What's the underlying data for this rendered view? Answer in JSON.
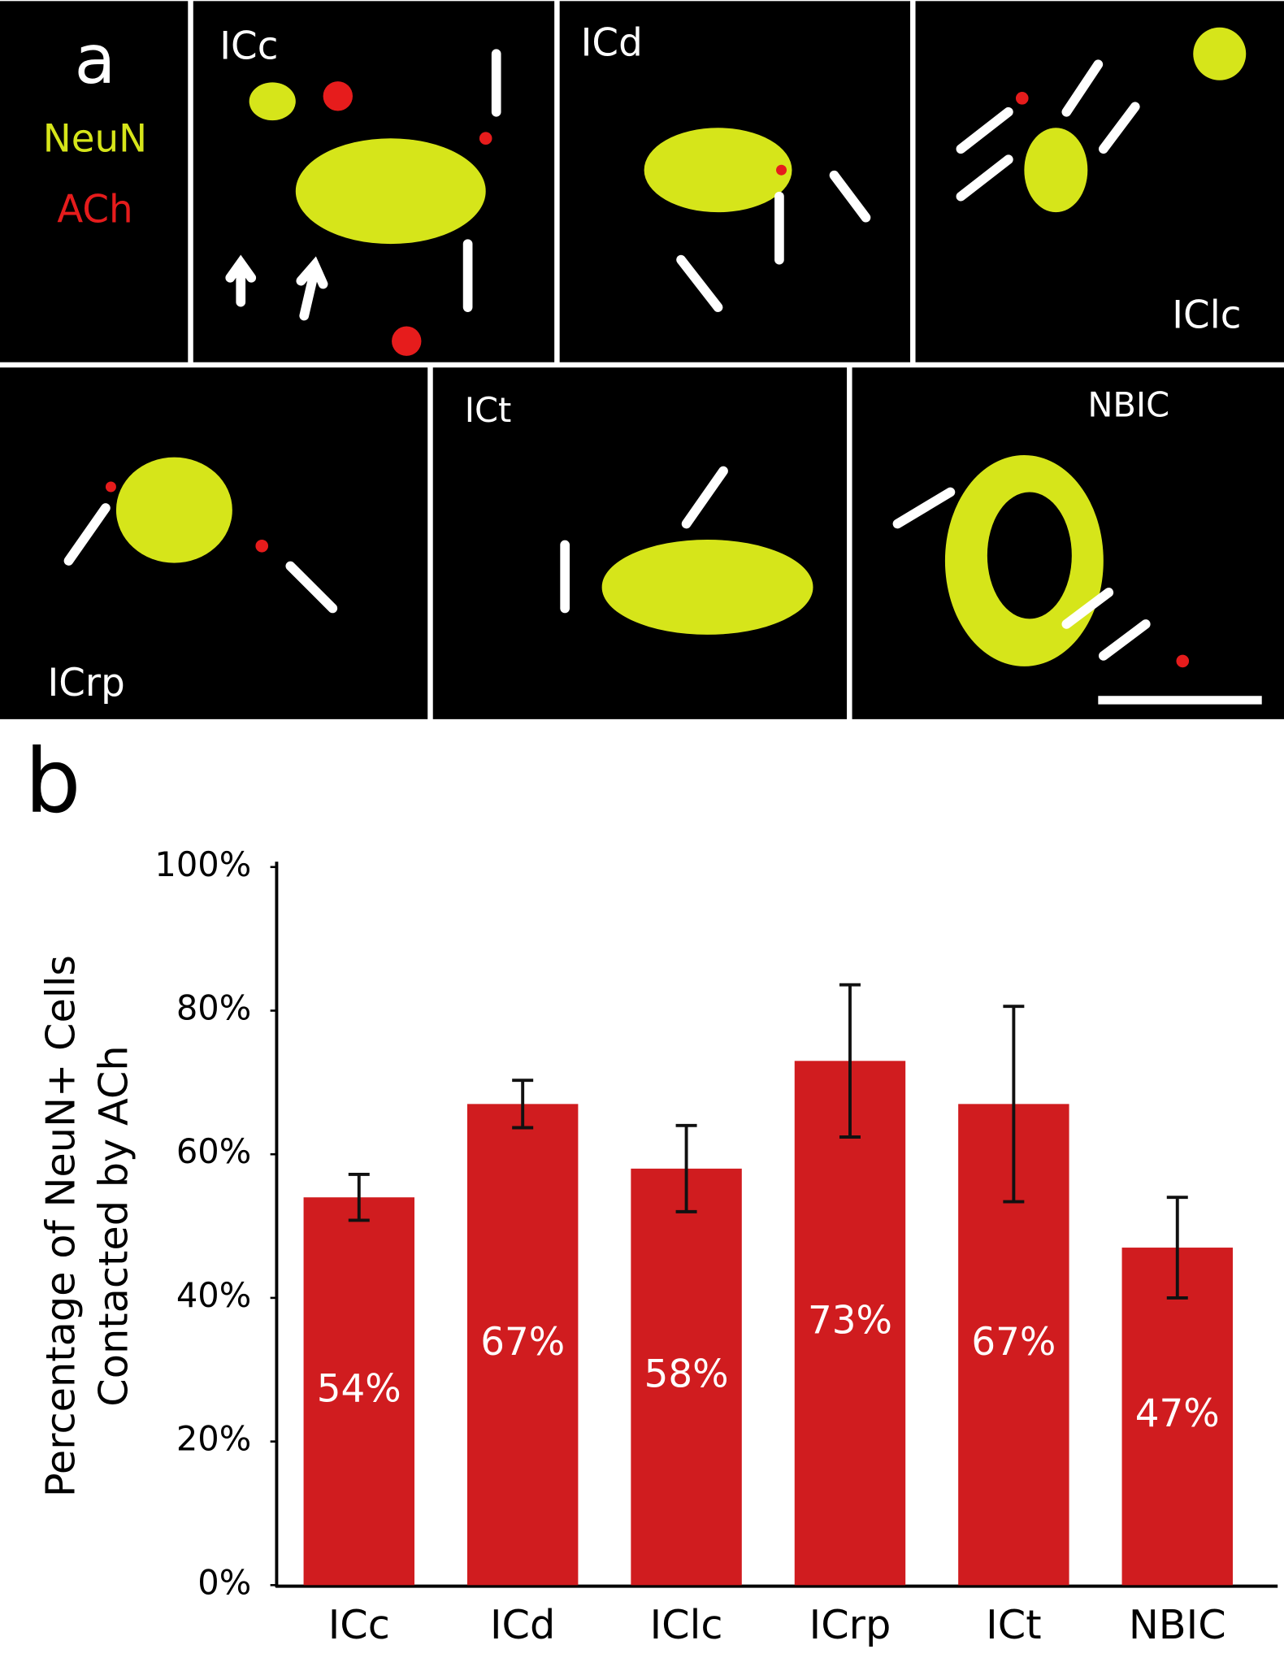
{
  "panel_a": {
    "label": "a",
    "legend": [
      "NeuN",
      "ACh"
    ],
    "images": [
      "ICc",
      "ICd",
      "IClc",
      "ICrp",
      "ICt",
      "NBIC"
    ]
  },
  "chart_data": {
    "type": "bar",
    "label": "b",
    "ylabel": [
      "Percentage of NeuN+ Cells",
      "Contacted by ACh"
    ],
    "categories": [
      "ICc",
      "ICd",
      "IClc",
      "ICrp",
      "ICt",
      "NBIC"
    ],
    "values": [
      54,
      67,
      58,
      73,
      67,
      47
    ],
    "value_labels": [
      "54%",
      "67%",
      "58%",
      "73%",
      "67%",
      "47%"
    ],
    "errors": [
      3.2,
      3.3,
      6,
      10.6,
      13.6,
      7
    ],
    "color": "#d01c1f",
    "ylim": [
      0,
      100
    ],
    "yticks": [
      {
        "value": 0,
        "label": "0%"
      },
      {
        "value": 20,
        "label": "20%"
      },
      {
        "value": 40,
        "label": "40%"
      },
      {
        "value": 60,
        "label": "60%"
      },
      {
        "value": 80,
        "label": "80%"
      },
      {
        "value": 100,
        "label": "100%"
      }
    ],
    "grid": false
  }
}
